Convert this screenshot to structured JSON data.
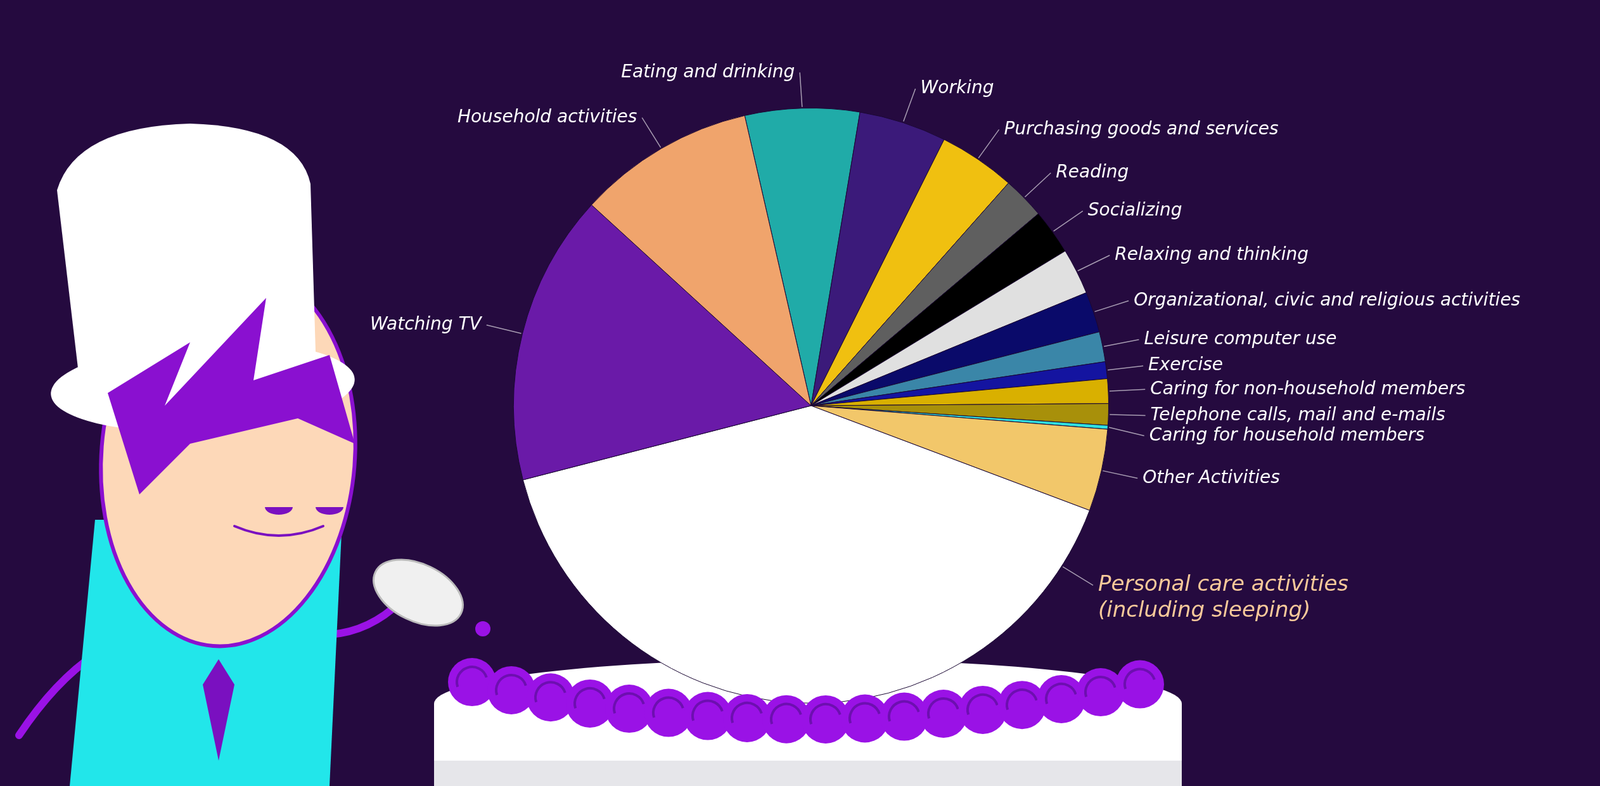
{
  "chart_data": {
    "type": "pie",
    "categories": [
      "Eating and drinking",
      "Working",
      "Purchasing goods and services",
      "Reading",
      "Socializing",
      "Relaxing and thinking",
      "Organizational, civic and religious activities",
      "Leisure computer use",
      "Exercise",
      "Caring for non-household members",
      "Telephone calls, mail and e-mails",
      "Caring for household members",
      "Other Activities",
      "Personal care activities (including sleeping)",
      "Watching TV",
      "Household activities"
    ],
    "values": [
      1.49,
      1.14,
      1.0,
      0.55,
      0.59,
      0.6,
      0.53,
      0.39,
      0.22,
      0.32,
      0.28,
      0.05,
      1.07,
      9.66,
      3.79,
      2.31
    ],
    "colors": [
      "#20aba8",
      "#3b1a7a",
      "#f0c010",
      "#5f5f5f",
      "#000000",
      "#e0e0e0",
      "#0a0a6a",
      "#3a86a8",
      "#1414a0",
      "#d9b000",
      "#a8900a",
      "#30e0e0",
      "#f2c76a",
      "#ffffff",
      "#6a1aa8",
      "#f0a46c"
    ]
  }
}
